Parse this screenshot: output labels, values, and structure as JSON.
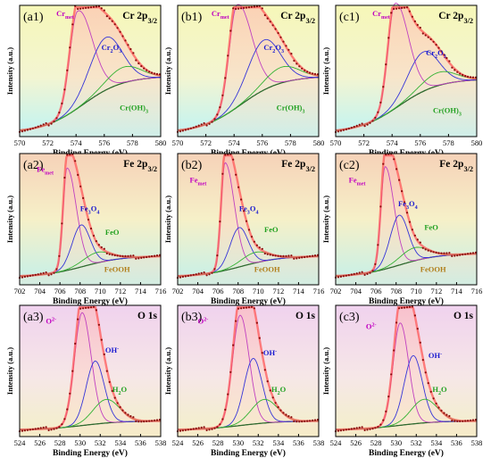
{
  "figure": {
    "xlabel": "Binding Energy (eV)",
    "ylabel": "Intensity (a.u.)",
    "colors": {
      "raw": "#8b0d0d",
      "envelope": "#ff5a5a",
      "background_line": "#2f6a2f",
      "peak_metal": "#c040c0",
      "peak_ox": "#3535d8",
      "peak_hyd": "#33b233",
      "label_magenta": "#c000c0",
      "label_blue": "#1a1ad0",
      "label_green": "#20a020",
      "label_olive": "#b07d18"
    }
  },
  "chart_data": [
    {
      "id": "a1",
      "panel_label": "(a1)",
      "title_main": "Cr 2p",
      "title_sub": "3/2",
      "type": "line",
      "xlim": [
        570,
        580
      ],
      "xticks": [
        570,
        572,
        574,
        576,
        578,
        580
      ],
      "bg": "cr",
      "peaks": [
        {
          "name": "Cr_met",
          "center": 574.1,
          "height": 0.74,
          "sigma": 0.55,
          "tail": 0.9,
          "color": "peak_metal"
        },
        {
          "name": "Cr2O3",
          "center": 576.1,
          "height": 0.4,
          "sigma": 1.15,
          "tail": 0,
          "color": "peak_ox"
        },
        {
          "name": "Cr(OH)3",
          "center": 577.4,
          "height": 0.12,
          "sigma": 1.2,
          "tail": 0,
          "color": "peak_hyd"
        }
      ],
      "background": [
        0.03,
        0.46
      ],
      "labels": [
        {
          "text": "Cr",
          "sub": "met",
          "x": 572.6,
          "y": 0.92,
          "color": "label_magenta"
        },
        {
          "text": "Cr",
          "sub": "2",
          "text2": "O",
          "sub2": "3",
          "x": 575.8,
          "y": 0.66,
          "color": "label_blue"
        },
        {
          "text": "Cr(OH)",
          "sub": "3",
          "x": 577.1,
          "y": 0.2,
          "color": "label_green"
        }
      ]
    },
    {
      "id": "b1",
      "panel_label": "(b1)",
      "title_main": "Cr 2p",
      "title_sub": "3/2",
      "type": "line",
      "xlim": [
        570,
        580
      ],
      "xticks": [
        570,
        572,
        574,
        576,
        578,
        580
      ],
      "bg": "cr",
      "peaks": [
        {
          "name": "Cr_met",
          "center": 574.2,
          "height": 0.78,
          "sigma": 0.55,
          "tail": 0.9,
          "color": "peak_metal"
        },
        {
          "name": "Cr2O3",
          "center": 576.1,
          "height": 0.38,
          "sigma": 1.15,
          "tail": 0,
          "color": "peak_ox"
        },
        {
          "name": "Cr(OH)3",
          "center": 577.4,
          "height": 0.12,
          "sigma": 1.2,
          "tail": 0,
          "color": "peak_hyd"
        }
      ],
      "background": [
        0.03,
        0.46
      ],
      "labels": [
        {
          "text": "Cr",
          "sub": "met",
          "x": 572.4,
          "y": 0.92,
          "color": "label_magenta"
        },
        {
          "text": "Cr",
          "sub": "2",
          "text2": "O",
          "sub2": "3",
          "x": 576.1,
          "y": 0.66,
          "color": "label_blue"
        },
        {
          "text": "Cr(OH)",
          "sub": "3",
          "x": 577.0,
          "y": 0.2,
          "color": "label_green"
        }
      ]
    },
    {
      "id": "c1",
      "panel_label": "(c1)",
      "title_main": "Cr 2p",
      "title_sub": "3/2",
      "type": "line",
      "xlim": [
        570,
        580
      ],
      "xticks": [
        570,
        572,
        574,
        576,
        578,
        580
      ],
      "bg": "cr",
      "peaks": [
        {
          "name": "Cr_met",
          "center": 574.2,
          "height": 0.8,
          "sigma": 0.5,
          "tail": 0.9,
          "color": "peak_metal"
        },
        {
          "name": "Cr2O3",
          "center": 576.2,
          "height": 0.3,
          "sigma": 1.1,
          "tail": 0,
          "color": "peak_ox"
        },
        {
          "name": "Cr(OH)3",
          "center": 577.3,
          "height": 0.1,
          "sigma": 1.2,
          "tail": 0,
          "color": "peak_hyd"
        }
      ],
      "background": [
        0.03,
        0.44
      ],
      "labels": [
        {
          "text": "Cr",
          "sub": "met",
          "x": 572.6,
          "y": 0.92,
          "color": "label_magenta"
        },
        {
          "text": "Cr",
          "sub": "2",
          "text2": "O",
          "sub2": "3",
          "x": 576.4,
          "y": 0.62,
          "color": "label_blue"
        },
        {
          "text": "Cr(OH)",
          "sub": "3",
          "x": 576.9,
          "y": 0.18,
          "color": "label_green"
        }
      ]
    },
    {
      "id": "a2",
      "panel_label": "(a2)",
      "title_main": "Fe 2p",
      "title_sub": "3/2",
      "type": "line",
      "xlim": [
        702,
        716
      ],
      "xticks": [
        702,
        704,
        706,
        708,
        710,
        712,
        714,
        716
      ],
      "bg": "fe",
      "peaks": [
        {
          "name": "Fe_met",
          "center": 706.7,
          "height": 0.78,
          "sigma": 0.38,
          "tail": 1.4,
          "color": "peak_metal"
        },
        {
          "name": "Fe3O4",
          "center": 708.1,
          "height": 0.32,
          "sigma": 0.9,
          "tail": 0,
          "color": "peak_ox"
        },
        {
          "name": "FeO",
          "center": 709.7,
          "height": 0.08,
          "sigma": 1.4,
          "tail": 0,
          "color": "peak_hyd"
        }
      ],
      "background": [
        0.06,
        0.22
      ],
      "labels": [
        {
          "text": "Fe",
          "sub": "met",
          "x": 703.7,
          "y": 0.86,
          "color": "label_magenta"
        },
        {
          "text": "Fe",
          "sub": "3",
          "text2": "O",
          "sub2": "4",
          "x": 708.0,
          "y": 0.56,
          "color": "label_blue"
        },
        {
          "text": "FeO",
          "x": 710.5,
          "y": 0.38,
          "color": "label_green"
        },
        {
          "text": "FeOOH",
          "x": 710.4,
          "y": 0.1,
          "color": "label_olive"
        }
      ]
    },
    {
      "id": "b2",
      "panel_label": "(b2)",
      "title_main": "Fe 2p",
      "title_sub": "3/2",
      "type": "line",
      "xlim": [
        702,
        716
      ],
      "xticks": [
        702,
        704,
        706,
        708,
        710,
        712,
        714,
        716
      ],
      "bg": "fe",
      "peaks": [
        {
          "name": "Fe_met",
          "center": 706.7,
          "height": 0.82,
          "sigma": 0.38,
          "tail": 1.4,
          "color": "peak_metal"
        },
        {
          "name": "Fe3O4",
          "center": 708.1,
          "height": 0.3,
          "sigma": 0.9,
          "tail": 0,
          "color": "peak_ox"
        },
        {
          "name": "FeO",
          "center": 709.7,
          "height": 0.08,
          "sigma": 1.4,
          "tail": 0,
          "color": "peak_hyd"
        }
      ],
      "background": [
        0.06,
        0.22
      ],
      "labels": [
        {
          "text": "Fe",
          "sub": "met",
          "x": 703.2,
          "y": 0.78,
          "color": "label_magenta"
        },
        {
          "text": "Fe",
          "sub": "3",
          "text2": "O",
          "sub2": "4",
          "x": 708.1,
          "y": 0.56,
          "color": "label_blue"
        },
        {
          "text": "FeO",
          "x": 710.6,
          "y": 0.4,
          "color": "label_green"
        },
        {
          "text": "FeOOH",
          "x": 709.6,
          "y": 0.1,
          "color": "label_olive"
        }
      ]
    },
    {
      "id": "c2",
      "panel_label": "(c2)",
      "title_main": "Fe 2p",
      "title_sub": "3/2",
      "type": "line",
      "xlim": [
        702,
        716
      ],
      "xticks": [
        702,
        704,
        706,
        708,
        710,
        712,
        714,
        716
      ],
      "bg": "fe",
      "peaks": [
        {
          "name": "Fe_met",
          "center": 706.9,
          "height": 0.78,
          "sigma": 0.4,
          "tail": 1.2,
          "color": "peak_metal"
        },
        {
          "name": "Fe3O4",
          "center": 708.3,
          "height": 0.38,
          "sigma": 0.9,
          "tail": 0,
          "color": "peak_ox"
        },
        {
          "name": "FeO",
          "center": 709.8,
          "height": 0.1,
          "sigma": 1.4,
          "tail": 0,
          "color": "peak_hyd"
        }
      ],
      "background": [
        0.06,
        0.24
      ],
      "labels": [
        {
          "text": "Fe",
          "sub": "met",
          "x": 703.3,
          "y": 0.78,
          "color": "label_magenta"
        },
        {
          "text": "Fe",
          "sub": "3",
          "text2": "O",
          "sub2": "4",
          "x": 708.2,
          "y": 0.6,
          "color": "label_blue"
        },
        {
          "text": "FeO",
          "x": 710.8,
          "y": 0.42,
          "color": "label_green"
        },
        {
          "text": "FeOOH",
          "x": 710.4,
          "y": 0.1,
          "color": "label_olive"
        }
      ]
    },
    {
      "id": "a3",
      "panel_label": "(a3)",
      "title_main": "O 1s",
      "title_sub": "",
      "type": "line",
      "xlim": [
        524,
        538
      ],
      "xticks": [
        524,
        526,
        528,
        530,
        532,
        534,
        536,
        538
      ],
      "bg": "o",
      "peaks": [
        {
          "name": "O2-",
          "center": 530.2,
          "height": 0.86,
          "sigma": 0.75,
          "tail": 0.2,
          "color": "peak_metal"
        },
        {
          "name": "OH-",
          "center": 531.5,
          "height": 0.48,
          "sigma": 0.9,
          "tail": 0,
          "color": "peak_ox"
        },
        {
          "name": "H2O",
          "center": 532.6,
          "height": 0.18,
          "sigma": 1.3,
          "tail": 0,
          "color": "peak_hyd"
        }
      ],
      "background": [
        0.05,
        0.12
      ],
      "labels": [
        {
          "text": "O",
          "sup": "2-",
          "x": 526.6,
          "y": 0.86,
          "color": "label_magenta"
        },
        {
          "text": "OH",
          "sup": "-",
          "x": 532.5,
          "y": 0.64,
          "color": "label_blue"
        },
        {
          "text": "H",
          "sub": "2",
          "text2": "O",
          "x": 533.2,
          "y": 0.34,
          "color": "label_green"
        }
      ]
    },
    {
      "id": "b3",
      "panel_label": "(b3)",
      "title_main": "O 1s",
      "title_sub": "",
      "type": "line",
      "xlim": [
        524,
        538
      ],
      "xticks": [
        524,
        526,
        528,
        530,
        532,
        534,
        536,
        538
      ],
      "bg": "o",
      "peaks": [
        {
          "name": "O2-",
          "center": 530.2,
          "height": 0.84,
          "sigma": 0.75,
          "tail": 0.2,
          "color": "peak_metal"
        },
        {
          "name": "OH-",
          "center": 531.5,
          "height": 0.5,
          "sigma": 0.9,
          "tail": 0,
          "color": "peak_ox"
        },
        {
          "name": "H2O",
          "center": 532.6,
          "height": 0.18,
          "sigma": 1.3,
          "tail": 0,
          "color": "peak_hyd"
        }
      ],
      "background": [
        0.05,
        0.12
      ],
      "labels": [
        {
          "text": "O",
          "sup": "2-",
          "x": 526.0,
          "y": 0.86,
          "color": "label_magenta"
        },
        {
          "text": "OH",
          "sup": "-",
          "x": 532.5,
          "y": 0.62,
          "color": "label_blue"
        },
        {
          "text": "H",
          "sub": "2",
          "text2": "O",
          "x": 533.3,
          "y": 0.34,
          "color": "label_green"
        }
      ]
    },
    {
      "id": "c3",
      "panel_label": "(c3)",
      "title_main": "O 1s",
      "title_sub": "",
      "type": "line",
      "xlim": [
        524,
        538
      ],
      "xticks": [
        524,
        526,
        528,
        530,
        532,
        534,
        536,
        538
      ],
      "bg": "o",
      "peaks": [
        {
          "name": "O2-",
          "center": 530.4,
          "height": 0.78,
          "sigma": 0.7,
          "tail": 0.2,
          "color": "peak_metal"
        },
        {
          "name": "OH-",
          "center": 531.7,
          "height": 0.52,
          "sigma": 0.9,
          "tail": 0,
          "color": "peak_ox"
        },
        {
          "name": "H2O",
          "center": 532.8,
          "height": 0.18,
          "sigma": 1.3,
          "tail": 0,
          "color": "peak_hyd"
        }
      ],
      "background": [
        0.05,
        0.12
      ],
      "labels": [
        {
          "text": "O",
          "sup": "2-",
          "x": 527.0,
          "y": 0.82,
          "color": "label_magenta"
        },
        {
          "text": "OH",
          "sup": "-",
          "x": 533.2,
          "y": 0.6,
          "color": "label_blue"
        },
        {
          "text": "H",
          "sub": "2",
          "text2": "O",
          "x": 533.6,
          "y": 0.34,
          "color": "label_green"
        }
      ]
    }
  ]
}
